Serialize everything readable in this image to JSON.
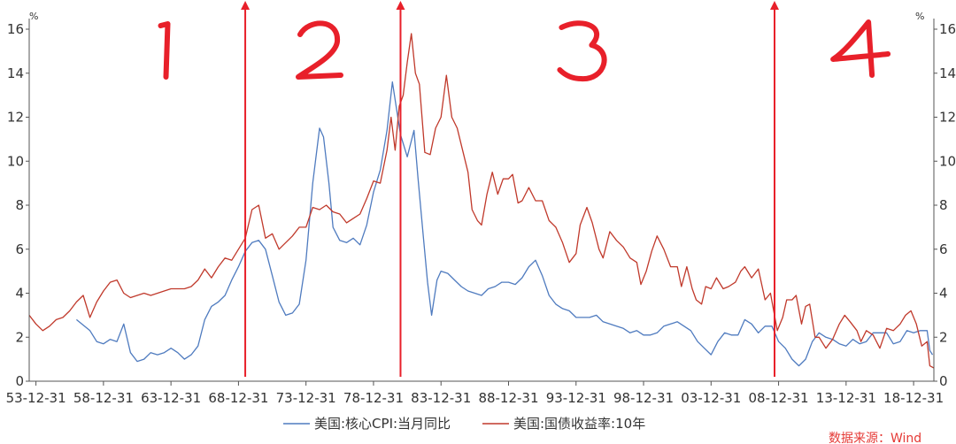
{
  "chart_data": {
    "type": "line",
    "title": "",
    "xlabel": "",
    "ylabel": "",
    "unit_left": "%",
    "unit_right": "%",
    "ylim": [
      0,
      16
    ],
    "yticks": [
      0,
      2,
      4,
      6,
      8,
      10,
      12,
      14,
      16
    ],
    "x_ticks": [
      "53-12-31",
      "58-12-31",
      "63-12-31",
      "68-12-31",
      "73-12-31",
      "78-12-31",
      "83-12-31",
      "88-12-31",
      "93-12-31",
      "98-12-31",
      "03-12-31",
      "08-12-31",
      "13-12-31",
      "18-12-31"
    ],
    "xlim": [
      1953.5,
      2020.5
    ],
    "grid": false,
    "legend_position": "bottom",
    "series": [
      {
        "name": "美国:核心CPI:当月同比",
        "color": "#4f7bbf",
        "points": [
          [
            1957.0,
            2.8
          ],
          [
            1958.0,
            2.3
          ],
          [
            1958.5,
            1.8
          ],
          [
            1959.0,
            1.7
          ],
          [
            1959.5,
            1.9
          ],
          [
            1960.0,
            1.8
          ],
          [
            1960.5,
            2.6
          ],
          [
            1961.0,
            1.3
          ],
          [
            1961.5,
            0.9
          ],
          [
            1962.0,
            1.0
          ],
          [
            1962.5,
            1.3
          ],
          [
            1963.0,
            1.2
          ],
          [
            1963.5,
            1.3
          ],
          [
            1964.0,
            1.5
          ],
          [
            1964.5,
            1.3
          ],
          [
            1965.0,
            1.0
          ],
          [
            1965.5,
            1.2
          ],
          [
            1966.0,
            1.6
          ],
          [
            1966.5,
            2.8
          ],
          [
            1967.0,
            3.4
          ],
          [
            1967.5,
            3.6
          ],
          [
            1968.0,
            3.9
          ],
          [
            1968.5,
            4.6
          ],
          [
            1969.0,
            5.2
          ],
          [
            1969.5,
            5.9
          ],
          [
            1970.0,
            6.3
          ],
          [
            1970.5,
            6.4
          ],
          [
            1971.0,
            6.0
          ],
          [
            1971.5,
            4.8
          ],
          [
            1972.0,
            3.6
          ],
          [
            1972.5,
            3.0
          ],
          [
            1973.0,
            3.1
          ],
          [
            1973.5,
            3.5
          ],
          [
            1974.0,
            5.5
          ],
          [
            1974.5,
            9.0
          ],
          [
            1975.0,
            11.5
          ],
          [
            1975.3,
            11.1
          ],
          [
            1975.7,
            9.0
          ],
          [
            1976.0,
            7.0
          ],
          [
            1976.5,
            6.4
          ],
          [
            1977.0,
            6.3
          ],
          [
            1977.5,
            6.5
          ],
          [
            1978.0,
            6.2
          ],
          [
            1978.5,
            7.1
          ],
          [
            1979.0,
            8.6
          ],
          [
            1979.5,
            9.6
          ],
          [
            1980.0,
            11.4
          ],
          [
            1980.4,
            13.6
          ],
          [
            1980.8,
            12.0
          ],
          [
            1981.0,
            11.2
          ],
          [
            1981.5,
            10.2
          ],
          [
            1982.0,
            11.4
          ],
          [
            1982.3,
            9.2
          ],
          [
            1982.7,
            6.5
          ],
          [
            1983.0,
            4.5
          ],
          [
            1983.3,
            3.0
          ],
          [
            1983.7,
            4.6
          ],
          [
            1984.0,
            5.0
          ],
          [
            1984.5,
            4.9
          ],
          [
            1985.0,
            4.6
          ],
          [
            1985.5,
            4.3
          ],
          [
            1986.0,
            4.1
          ],
          [
            1986.5,
            4.0
          ],
          [
            1987.0,
            3.9
          ],
          [
            1987.5,
            4.2
          ],
          [
            1988.0,
            4.3
          ],
          [
            1988.5,
            4.5
          ],
          [
            1989.0,
            4.5
          ],
          [
            1989.5,
            4.4
          ],
          [
            1990.0,
            4.7
          ],
          [
            1990.5,
            5.2
          ],
          [
            1991.0,
            5.5
          ],
          [
            1991.5,
            4.8
          ],
          [
            1992.0,
            3.9
          ],
          [
            1992.5,
            3.5
          ],
          [
            1993.0,
            3.3
          ],
          [
            1993.5,
            3.2
          ],
          [
            1994.0,
            2.9
          ],
          [
            1994.5,
            2.9
          ],
          [
            1995.0,
            2.9
          ],
          [
            1995.5,
            3.0
          ],
          [
            1996.0,
            2.7
          ],
          [
            1996.5,
            2.6
          ],
          [
            1997.0,
            2.5
          ],
          [
            1997.5,
            2.4
          ],
          [
            1998.0,
            2.2
          ],
          [
            1998.5,
            2.3
          ],
          [
            1999.0,
            2.1
          ],
          [
            1999.5,
            2.1
          ],
          [
            2000.0,
            2.2
          ],
          [
            2000.5,
            2.5
          ],
          [
            2001.0,
            2.6
          ],
          [
            2001.5,
            2.7
          ],
          [
            2002.0,
            2.5
          ],
          [
            2002.5,
            2.3
          ],
          [
            2003.0,
            1.8
          ],
          [
            2003.5,
            1.5
          ],
          [
            2004.0,
            1.2
          ],
          [
            2004.5,
            1.8
          ],
          [
            2005.0,
            2.2
          ],
          [
            2005.5,
            2.1
          ],
          [
            2006.0,
            2.1
          ],
          [
            2006.5,
            2.8
          ],
          [
            2007.0,
            2.6
          ],
          [
            2007.5,
            2.2
          ],
          [
            2008.0,
            2.5
          ],
          [
            2008.5,
            2.5
          ],
          [
            2009.0,
            1.8
          ],
          [
            2009.5,
            1.5
          ],
          [
            2010.0,
            1.0
          ],
          [
            2010.5,
            0.7
          ],
          [
            2011.0,
            1.0
          ],
          [
            2011.5,
            1.8
          ],
          [
            2012.0,
            2.2
          ],
          [
            2012.5,
            2.0
          ],
          [
            2013.0,
            1.9
          ],
          [
            2013.5,
            1.7
          ],
          [
            2014.0,
            1.6
          ],
          [
            2014.5,
            1.9
          ],
          [
            2015.0,
            1.7
          ],
          [
            2015.5,
            1.8
          ],
          [
            2016.0,
            2.2
          ],
          [
            2016.5,
            2.2
          ],
          [
            2017.0,
            2.2
          ],
          [
            2017.5,
            1.7
          ],
          [
            2018.0,
            1.8
          ],
          [
            2018.5,
            2.3
          ],
          [
            2019.0,
            2.2
          ],
          [
            2019.5,
            2.3
          ],
          [
            2020.0,
            2.3
          ],
          [
            2020.2,
            1.4
          ],
          [
            2020.4,
            1.2
          ]
        ]
      },
      {
        "name": "美国:国债收益率:10年",
        "color": "#c0392b",
        "points": [
          [
            1953.5,
            3.0
          ],
          [
            1954.0,
            2.6
          ],
          [
            1954.5,
            2.3
          ],
          [
            1955.0,
            2.5
          ],
          [
            1955.5,
            2.8
          ],
          [
            1956.0,
            2.9
          ],
          [
            1956.5,
            3.2
          ],
          [
            1957.0,
            3.6
          ],
          [
            1957.5,
            3.9
          ],
          [
            1958.0,
            2.9
          ],
          [
            1958.5,
            3.6
          ],
          [
            1959.0,
            4.1
          ],
          [
            1959.5,
            4.5
          ],
          [
            1960.0,
            4.6
          ],
          [
            1960.5,
            4.0
          ],
          [
            1961.0,
            3.8
          ],
          [
            1961.5,
            3.9
          ],
          [
            1962.0,
            4.0
          ],
          [
            1962.5,
            3.9
          ],
          [
            1963.0,
            4.0
          ],
          [
            1963.5,
            4.1
          ],
          [
            1964.0,
            4.2
          ],
          [
            1964.5,
            4.2
          ],
          [
            1965.0,
            4.2
          ],
          [
            1965.5,
            4.3
          ],
          [
            1966.0,
            4.6
          ],
          [
            1966.5,
            5.1
          ],
          [
            1967.0,
            4.7
          ],
          [
            1967.5,
            5.2
          ],
          [
            1968.0,
            5.6
          ],
          [
            1968.5,
            5.5
          ],
          [
            1969.0,
            6.0
          ],
          [
            1969.5,
            6.5
          ],
          [
            1970.0,
            7.8
          ],
          [
            1970.5,
            8.0
          ],
          [
            1971.0,
            6.5
          ],
          [
            1971.5,
            6.7
          ],
          [
            1972.0,
            6.0
          ],
          [
            1972.5,
            6.3
          ],
          [
            1973.0,
            6.6
          ],
          [
            1973.5,
            7.0
          ],
          [
            1974.0,
            7.0
          ],
          [
            1974.5,
            7.9
          ],
          [
            1975.0,
            7.8
          ],
          [
            1975.5,
            8.0
          ],
          [
            1976.0,
            7.7
          ],
          [
            1976.5,
            7.6
          ],
          [
            1977.0,
            7.2
          ],
          [
            1977.5,
            7.4
          ],
          [
            1978.0,
            7.6
          ],
          [
            1978.5,
            8.3
          ],
          [
            1979.0,
            9.1
          ],
          [
            1979.5,
            9.0
          ],
          [
            1980.0,
            10.5
          ],
          [
            1980.3,
            12.0
          ],
          [
            1980.6,
            10.5
          ],
          [
            1980.9,
            12.5
          ],
          [
            1981.2,
            13.0
          ],
          [
            1981.5,
            14.5
          ],
          [
            1981.8,
            15.8
          ],
          [
            1982.1,
            14.0
          ],
          [
            1982.4,
            13.5
          ],
          [
            1982.8,
            10.4
          ],
          [
            1983.2,
            10.3
          ],
          [
            1983.6,
            11.5
          ],
          [
            1984.0,
            12.0
          ],
          [
            1984.4,
            13.9
          ],
          [
            1984.8,
            12.0
          ],
          [
            1985.2,
            11.5
          ],
          [
            1985.6,
            10.5
          ],
          [
            1986.0,
            9.5
          ],
          [
            1986.3,
            7.8
          ],
          [
            1986.7,
            7.3
          ],
          [
            1987.0,
            7.1
          ],
          [
            1987.4,
            8.5
          ],
          [
            1987.8,
            9.5
          ],
          [
            1988.2,
            8.5
          ],
          [
            1988.6,
            9.2
          ],
          [
            1989.0,
            9.2
          ],
          [
            1989.3,
            9.4
          ],
          [
            1989.7,
            8.1
          ],
          [
            1990.0,
            8.2
          ],
          [
            1990.5,
            8.8
          ],
          [
            1991.0,
            8.2
          ],
          [
            1991.5,
            8.2
          ],
          [
            1992.0,
            7.3
          ],
          [
            1992.5,
            7.0
          ],
          [
            1993.0,
            6.3
          ],
          [
            1993.5,
            5.4
          ],
          [
            1994.0,
            5.8
          ],
          [
            1994.3,
            7.1
          ],
          [
            1994.8,
            7.9
          ],
          [
            1995.2,
            7.2
          ],
          [
            1995.7,
            6.0
          ],
          [
            1996.0,
            5.6
          ],
          [
            1996.5,
            6.8
          ],
          [
            1997.0,
            6.4
          ],
          [
            1997.5,
            6.1
          ],
          [
            1998.0,
            5.6
          ],
          [
            1998.5,
            5.4
          ],
          [
            1998.8,
            4.4
          ],
          [
            1999.2,
            5.0
          ],
          [
            1999.6,
            5.9
          ],
          [
            2000.0,
            6.6
          ],
          [
            2000.5,
            6.0
          ],
          [
            2001.0,
            5.2
          ],
          [
            2001.5,
            5.2
          ],
          [
            2001.8,
            4.3
          ],
          [
            2002.2,
            5.2
          ],
          [
            2002.6,
            4.2
          ],
          [
            2002.9,
            3.7
          ],
          [
            2003.3,
            3.5
          ],
          [
            2003.6,
            4.3
          ],
          [
            2004.0,
            4.2
          ],
          [
            2004.4,
            4.7
          ],
          [
            2004.9,
            4.2
          ],
          [
            2005.3,
            4.3
          ],
          [
            2005.8,
            4.5
          ],
          [
            2006.2,
            5.0
          ],
          [
            2006.5,
            5.2
          ],
          [
            2007.0,
            4.7
          ],
          [
            2007.5,
            5.1
          ],
          [
            2008.0,
            3.7
          ],
          [
            2008.4,
            4.0
          ],
          [
            2008.9,
            2.3
          ],
          [
            2009.3,
            2.9
          ],
          [
            2009.6,
            3.7
          ],
          [
            2010.0,
            3.7
          ],
          [
            2010.3,
            3.9
          ],
          [
            2010.7,
            2.6
          ],
          [
            2011.0,
            3.4
          ],
          [
            2011.3,
            3.5
          ],
          [
            2011.7,
            2.0
          ],
          [
            2012.0,
            2.0
          ],
          [
            2012.5,
            1.5
          ],
          [
            2013.0,
            1.9
          ],
          [
            2013.5,
            2.6
          ],
          [
            2013.9,
            3.0
          ],
          [
            2014.3,
            2.7
          ],
          [
            2014.8,
            2.3
          ],
          [
            2015.1,
            1.8
          ],
          [
            2015.5,
            2.3
          ],
          [
            2016.0,
            2.1
          ],
          [
            2016.5,
            1.5
          ],
          [
            2017.0,
            2.4
          ],
          [
            2017.5,
            2.3
          ],
          [
            2018.0,
            2.6
          ],
          [
            2018.4,
            3.0
          ],
          [
            2018.8,
            3.2
          ],
          [
            2019.2,
            2.6
          ],
          [
            2019.6,
            1.6
          ],
          [
            2020.0,
            1.8
          ],
          [
            2020.2,
            0.7
          ],
          [
            2020.5,
            0.6
          ]
        ]
      }
    ],
    "annotations": {
      "color": "#e8202a",
      "vertical_arrows_x": [
        1969.5,
        1981.0,
        2008.7
      ],
      "regions": [
        {
          "label": "1",
          "x": 1963.5
        },
        {
          "label": "2",
          "x": 1975.0
        },
        {
          "label": "3",
          "x": 1994.5
        },
        {
          "label": "4",
          "x": 2015.0
        }
      ]
    }
  },
  "source_note": "数据来源：Wind"
}
